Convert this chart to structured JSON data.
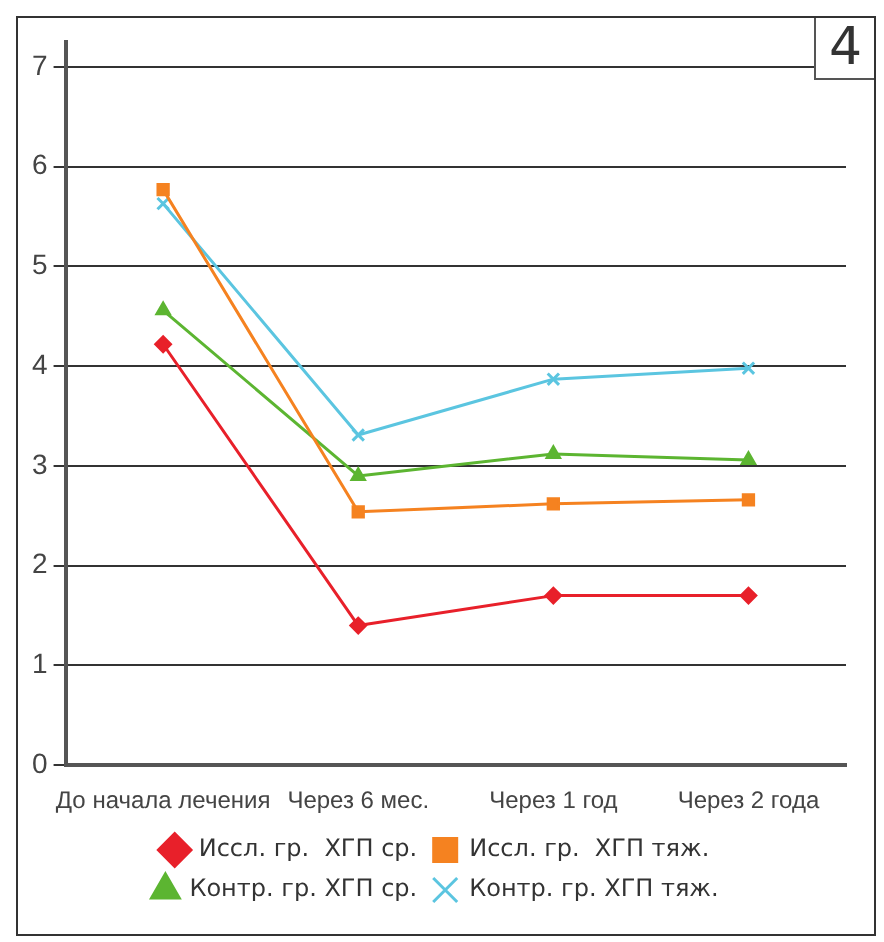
{
  "chart_data": {
    "type": "line",
    "categories": [
      "До начала лечения",
      "Через 6 мес.",
      "Через 1 год",
      "Через 2 года"
    ],
    "series": [
      {
        "name": "Иссл. гр.  ХГП ср.",
        "color": "#e8202a",
        "marker": "diamond",
        "values": [
          4.22,
          1.4,
          1.7,
          1.7
        ]
      },
      {
        "name": "Иссл. гр.  ХГП тяж.",
        "color": "#f58220",
        "marker": "square",
        "values": [
          5.77,
          2.54,
          2.62,
          2.66
        ]
      },
      {
        "name": "Контр. гр. ХГП ср.",
        "color": "#5cb531",
        "marker": "triangle",
        "values": [
          4.56,
          2.9,
          3.12,
          3.06
        ]
      },
      {
        "name": "Контр. гр. ХГП тяж.",
        "color": "#5bc5e0",
        "marker": "cross",
        "values": [
          5.63,
          3.31,
          3.87,
          3.98
        ]
      }
    ],
    "ylim": [
      0,
      7.25
    ],
    "yticks": [
      0,
      1,
      2,
      3,
      4,
      5,
      6,
      7
    ],
    "grid": "y",
    "legend": "bottom",
    "line_style": "solid",
    "annotations": [
      "4"
    ]
  }
}
